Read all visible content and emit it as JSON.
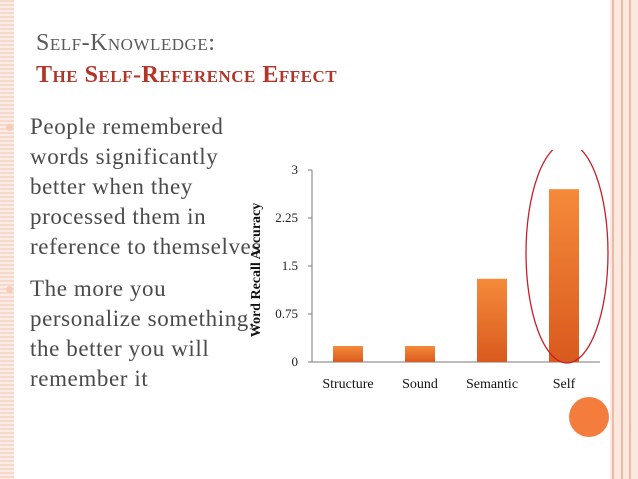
{
  "slide": {
    "title_line1": "Self-Knowledge:",
    "title_line2": "The Self-Reference Effect",
    "bullets": [
      "People remembered words significantly better when they processed them in reference to themselves",
      "The more you personalize something, the better you will remember it"
    ]
  },
  "colors": {
    "title_secondary": "#b2352a",
    "bar_top": "#f58a3a",
    "bar_bottom": "#d95a1e",
    "highlight_ellipse": "#c8202a",
    "accent_circle": "#f47c3c"
  },
  "chart_data": {
    "type": "bar",
    "title": "",
    "xlabel": "",
    "ylabel": "Word Recall Accuracy",
    "categories": [
      "Structure",
      "Sound",
      "Semantic",
      "Self"
    ],
    "values": [
      0.25,
      0.25,
      1.3,
      2.7
    ],
    "ylim": [
      0,
      3
    ],
    "yticks": [
      0,
      0.75,
      1.5,
      2.25,
      3
    ],
    "ytick_labels": [
      "0",
      "0.75",
      "1.5",
      "2.25",
      "3"
    ],
    "grid": false,
    "legend": "none",
    "highlight": "Self"
  }
}
